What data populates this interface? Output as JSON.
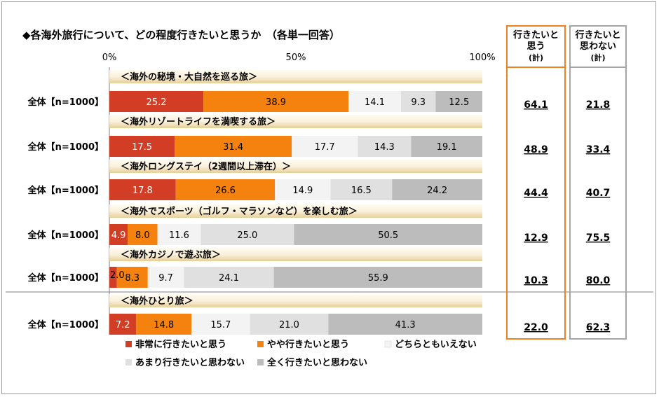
{
  "chart_data": {
    "type": "bar",
    "stacked": true,
    "orientation": "horizontal",
    "title": "◆各海外旅行について、どの程度行きたいと思うか　（各単一回答）",
    "xlim": [
      0,
      100
    ],
    "x_ticks": [
      "0%",
      "50%",
      "100%"
    ],
    "grid": false,
    "legend_position": "bottom",
    "colors": {
      "very": "#d13d25",
      "somewhat": "#f5820f",
      "neutral": "#f3f3f3",
      "not_much": "#e0e0e0",
      "not_at_all": "#bcbcbc",
      "header_bar": "#e6cf97",
      "want_box": "#f08020",
      "notwant_box": "#a6a6a6"
    },
    "series": [
      {
        "name": "非常に行きたいと思う",
        "color": "#d13d25"
      },
      {
        "name": "やや行きたいと思う",
        "color": "#f5820f"
      },
      {
        "name": "どちらともいえない",
        "color": "#f3f3f3"
      },
      {
        "name": "あまり行きたいと思わない",
        "color": "#e0e0e0"
      },
      {
        "name": "全く行きたいと思わない",
        "color": "#bcbcbc"
      }
    ],
    "groups": [
      {
        "category": "＜海外の秘境・大自然を巡る旅＞",
        "row_label": "全体【n=1000】",
        "values": [
          25.2,
          38.9,
          14.1,
          9.3,
          12.5
        ],
        "want": "64.1",
        "not_want": "21.8"
      },
      {
        "category": "＜海外リゾートライフを満喫する旅＞",
        "row_label": "全体【n=1000】",
        "values": [
          17.5,
          31.4,
          17.7,
          14.3,
          19.1
        ],
        "want": "48.9",
        "not_want": "33.4"
      },
      {
        "category": "＜海外ロングステイ（2週間以上滞在）＞",
        "row_label": "全体【n=1000】",
        "values": [
          17.8,
          26.6,
          14.9,
          16.5,
          24.2
        ],
        "want": "44.4",
        "not_want": "40.7"
      },
      {
        "category": "＜海外でスポーツ（ゴルフ・マラソンなど）を楽しむ旅＞",
        "row_label": "全体【n=1000】",
        "values": [
          4.9,
          8.0,
          11.6,
          25.0,
          50.5
        ],
        "want": "12.9",
        "not_want": "75.5"
      },
      {
        "category": "＜海外カジノで遊ぶ旅＞",
        "row_label": "全体【n=1000】",
        "values": [
          2.0,
          8.3,
          9.7,
          24.1,
          55.9
        ],
        "want": "10.3",
        "not_want": "80.0"
      },
      {
        "category": "＜海外ひとり旅＞",
        "row_label": "全体【n=1000】",
        "values": [
          7.2,
          14.8,
          15.7,
          21.0,
          41.3
        ],
        "want": "22.0",
        "not_want": "62.3"
      }
    ],
    "summary_columns": {
      "want_header": [
        "行きたいと",
        "思う",
        "(計)"
      ],
      "not_want_header": [
        "行きたいと",
        "思わない",
        "(計)"
      ]
    }
  }
}
